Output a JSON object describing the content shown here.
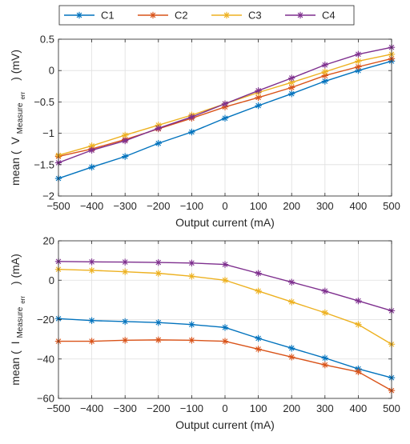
{
  "legend": {
    "placement": "top",
    "entries": [
      "C1",
      "C2",
      "C3",
      "C4"
    ]
  },
  "colors": {
    "C1": "#0072BD",
    "C2": "#D95319",
    "C3": "#EDB120",
    "C4": "#7E2F8E"
  },
  "marker": "asterisk",
  "chart_data": [
    {
      "type": "line",
      "title": "",
      "xlabel": "Output current (mA)",
      "ylabel": {
        "prefix": "mean (",
        "symbol": "V",
        "subscript": "Measure",
        "subsub": "err",
        "suffix": ") (mV)"
      },
      "xlim": [
        -500,
        500
      ],
      "ylim": [
        -2,
        0.5
      ],
      "grid": true,
      "xticks": [
        -500,
        -400,
        -300,
        -200,
        -100,
        0,
        100,
        200,
        300,
        400,
        500
      ],
      "yticks": [
        0.5,
        0,
        -0.5,
        -1,
        -1.5,
        -2
      ],
      "xtick_labels": [
        "−500",
        "−400",
        "−300",
        "−200",
        "−100",
        "0",
        "100",
        "200",
        "300",
        "400",
        "500"
      ],
      "ytick_labels": [
        "0.5",
        "0",
        "−0.5",
        "−1",
        "−1.5",
        "−2"
      ],
      "x": [
        -500,
        -400,
        -300,
        -200,
        -100,
        0,
        100,
        200,
        300,
        400,
        500
      ],
      "series": [
        {
          "name": "C1",
          "values": [
            -1.72,
            -1.54,
            -1.37,
            -1.16,
            -0.98,
            -0.76,
            -0.56,
            -0.37,
            -0.17,
            0.0,
            0.15
          ]
        },
        {
          "name": "C2",
          "values": [
            -1.37,
            -1.25,
            -1.1,
            -0.93,
            -0.76,
            -0.58,
            -0.43,
            -0.27,
            -0.08,
            0.06,
            0.19
          ]
        },
        {
          "name": "C3",
          "values": [
            -1.35,
            -1.2,
            -1.03,
            -0.87,
            -0.71,
            -0.53,
            -0.35,
            -0.19,
            -0.02,
            0.15,
            0.26
          ]
        },
        {
          "name": "C4",
          "values": [
            -1.47,
            -1.27,
            -1.12,
            -0.92,
            -0.74,
            -0.53,
            -0.32,
            -0.12,
            0.09,
            0.26,
            0.37
          ]
        }
      ]
    },
    {
      "type": "line",
      "title": "",
      "xlabel": "Output current (mA)",
      "ylabel": {
        "prefix": "mean (",
        "symbol": "I",
        "subscript": "Measure",
        "subsub": "err",
        "suffix": ") (mA)"
      },
      "xlim": [
        -500,
        500
      ],
      "ylim": [
        -60,
        20
      ],
      "grid": true,
      "xticks": [
        -500,
        -400,
        -300,
        -200,
        -100,
        0,
        100,
        200,
        300,
        400,
        500
      ],
      "yticks": [
        20,
        0,
        -20,
        -40,
        -60
      ],
      "xtick_labels": [
        "−500",
        "−400",
        "−300",
        "−200",
        "−100",
        "0",
        "100",
        "200",
        "300",
        "400",
        "500"
      ],
      "ytick_labels": [
        "20",
        "0",
        "−20",
        "−40",
        "−60"
      ],
      "x": [
        -500,
        -400,
        -300,
        -200,
        -100,
        0,
        100,
        200,
        300,
        400,
        500
      ],
      "series": [
        {
          "name": "C1",
          "values": [
            -19.5,
            -20.5,
            -21.0,
            -21.5,
            -22.5,
            -24.0,
            -29.5,
            -34.5,
            -39.5,
            -45.0,
            -49.5
          ]
        },
        {
          "name": "C2",
          "values": [
            -31.0,
            -31.0,
            -30.5,
            -30.3,
            -30.5,
            -31.0,
            -35.0,
            -39.0,
            -43.0,
            -46.5,
            -56.0
          ]
        },
        {
          "name": "C3",
          "values": [
            5.5,
            5.0,
            4.3,
            3.5,
            2.0,
            0.0,
            -5.5,
            -11.0,
            -16.5,
            -22.5,
            -32.5
          ]
        },
        {
          "name": "C4",
          "values": [
            9.5,
            9.3,
            9.2,
            9.0,
            8.7,
            8.0,
            3.5,
            -1.0,
            -5.5,
            -10.5,
            -15.5
          ]
        }
      ]
    }
  ]
}
